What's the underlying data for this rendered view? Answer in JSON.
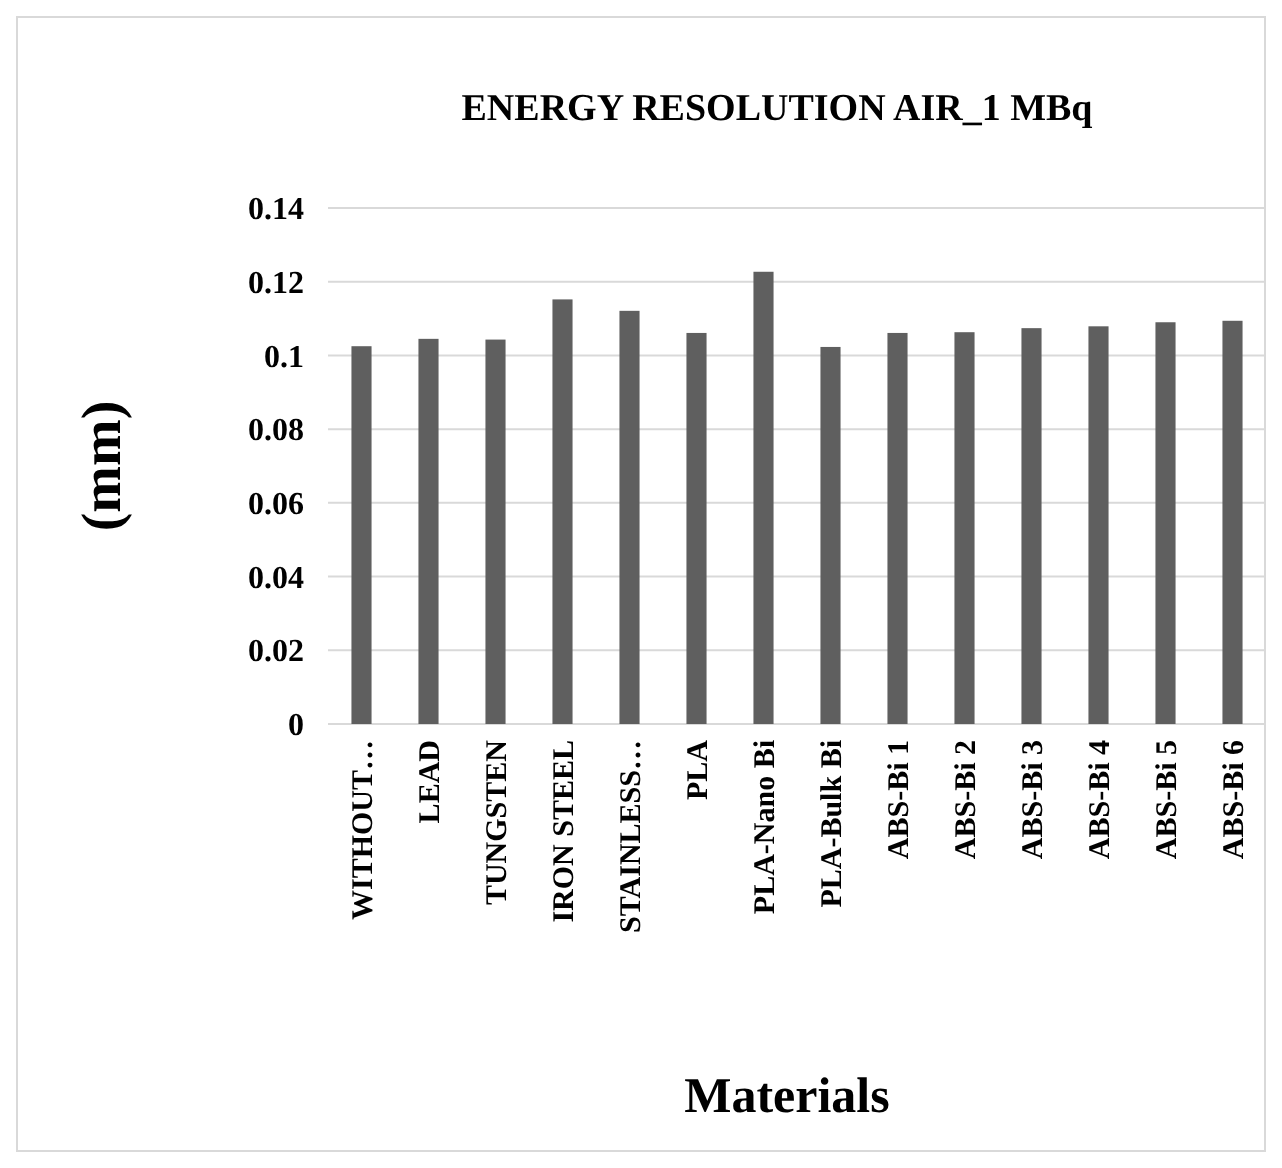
{
  "chart_data": {
    "type": "bar",
    "title": "ENERGY RESOLUTION AIR_1 MBq",
    "xlabel": "Materials",
    "ylabel": "(mm)",
    "categories": [
      "WITHOUT…",
      "LEAD",
      "TUNGSTEN",
      "IRON STEEL",
      "STAINLESS…",
      "PLA",
      "PLA-Nano Bi",
      "PLA-Bulk Bi",
      "ABS-Bi 1",
      "ABS-Bi 2",
      "ABS-Bi 3",
      "ABS-Bi 4",
      "ABS-Bi 5",
      "ABS-Bi 6"
    ],
    "values": [
      0.1025,
      0.1045,
      0.1043,
      0.1152,
      0.1121,
      0.1061,
      0.1227,
      0.1023,
      0.1061,
      0.1063,
      0.1074,
      0.1079,
      0.109,
      0.1094
    ],
    "color": "#5f5f5f",
    "ylim": [
      0,
      0.14
    ],
    "yticks": [
      0,
      0.02,
      0.04,
      0.06,
      0.08,
      0.1,
      0.12,
      0.14
    ],
    "grid": "y"
  }
}
